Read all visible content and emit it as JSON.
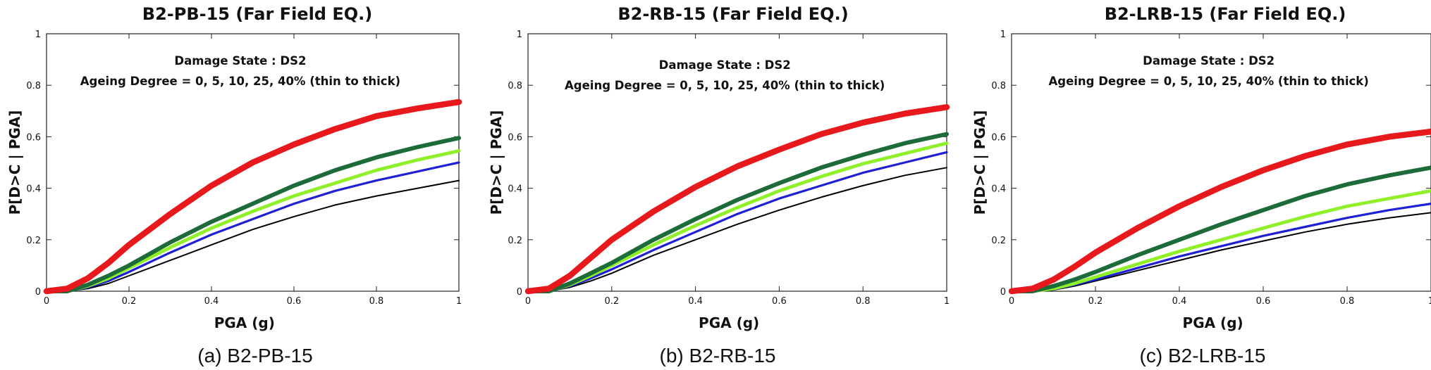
{
  "chart_data": [
    {
      "type": "line",
      "title": "B2-PB-15 (Far Field EQ.)",
      "caption": "(a) B2-PB-15",
      "xlabel": "PGA (g)",
      "ylabel": "P[D>C | PGA]",
      "xlim": [
        0,
        1
      ],
      "ylim": [
        0,
        1
      ],
      "xticks": [
        "0",
        "0.2",
        "0.4",
        "0.6",
        "0.8",
        "1"
      ],
      "yticks": [
        "0",
        "0.2",
        "0.4",
        "0.6",
        "0.8",
        "1"
      ],
      "annotations": [
        "Damage State : DS2",
        "Ageing Degree = 0, 5, 10, 25, 40% (thin to thick)"
      ],
      "x": [
        0,
        0.05,
        0.1,
        0.15,
        0.2,
        0.3,
        0.4,
        0.5,
        0.6,
        0.7,
        0.8,
        0.9,
        1.0
      ],
      "series": [
        {
          "name": "0%",
          "color": "#000000",
          "values": [
            0,
            0,
            0.01,
            0.03,
            0.06,
            0.12,
            0.18,
            0.24,
            0.29,
            0.335,
            0.37,
            0.4,
            0.43
          ]
        },
        {
          "name": "5%",
          "color": "#1f1fd6",
          "values": [
            0,
            0,
            0.015,
            0.04,
            0.075,
            0.15,
            0.22,
            0.28,
            0.34,
            0.39,
            0.43,
            0.465,
            0.5
          ]
        },
        {
          "name": "10%",
          "color": "#8ff02a",
          "values": [
            0,
            0,
            0.02,
            0.05,
            0.09,
            0.17,
            0.245,
            0.31,
            0.37,
            0.42,
            0.47,
            0.51,
            0.545
          ]
        },
        {
          "name": "25%",
          "color": "#1e6b3a",
          "values": [
            0,
            0,
            0.025,
            0.06,
            0.1,
            0.19,
            0.27,
            0.34,
            0.41,
            0.47,
            0.52,
            0.56,
            0.595
          ]
        },
        {
          "name": "40%",
          "color": "#e8191c",
          "values": [
            0,
            0.01,
            0.05,
            0.11,
            0.18,
            0.3,
            0.41,
            0.5,
            0.57,
            0.63,
            0.68,
            0.71,
            0.735
          ]
        }
      ]
    },
    {
      "type": "line",
      "title": "B2-RB-15 (Far Field EQ.)",
      "caption": "(b) B2-RB-15",
      "xlabel": "PGA (g)",
      "ylabel": "P[D>C | PGA]",
      "xlim": [
        0,
        1
      ],
      "ylim": [
        0,
        1
      ],
      "xticks": [
        "0",
        "0.2",
        "0.4",
        "0.6",
        "0.8",
        "1"
      ],
      "yticks": [
        "0",
        "0.2",
        "0.4",
        "0.6",
        "0.8",
        "1"
      ],
      "annotations": [
        "Damage State : DS2",
        "Ageing Degree = 0, 5, 10, 25, 40% (thin to thick)"
      ],
      "x": [
        0,
        0.05,
        0.1,
        0.15,
        0.2,
        0.3,
        0.4,
        0.5,
        0.6,
        0.7,
        0.8,
        0.9,
        1.0
      ],
      "series": [
        {
          "name": "0%",
          "color": "#000000",
          "values": [
            0,
            0,
            0.015,
            0.04,
            0.07,
            0.14,
            0.2,
            0.26,
            0.315,
            0.365,
            0.41,
            0.45,
            0.48
          ]
        },
        {
          "name": "5%",
          "color": "#1f1fd6",
          "values": [
            0,
            0,
            0.02,
            0.05,
            0.085,
            0.16,
            0.23,
            0.3,
            0.36,
            0.41,
            0.46,
            0.5,
            0.54
          ]
        },
        {
          "name": "10%",
          "color": "#8ff02a",
          "values": [
            0,
            0,
            0.025,
            0.06,
            0.1,
            0.18,
            0.255,
            0.325,
            0.39,
            0.445,
            0.495,
            0.535,
            0.575
          ]
        },
        {
          "name": "25%",
          "color": "#1e6b3a",
          "values": [
            0,
            0,
            0.03,
            0.07,
            0.11,
            0.2,
            0.28,
            0.355,
            0.42,
            0.48,
            0.53,
            0.575,
            0.61
          ]
        },
        {
          "name": "40%",
          "color": "#e8191c",
          "values": [
            0,
            0.01,
            0.06,
            0.13,
            0.2,
            0.31,
            0.405,
            0.485,
            0.55,
            0.61,
            0.655,
            0.69,
            0.715
          ]
        }
      ]
    },
    {
      "type": "line",
      "title": "B2-LRB-15 (Far Field EQ.)",
      "caption": "(c) B2-LRB-15",
      "xlabel": "PGA (g)",
      "ylabel": "P[D>C | PGA]",
      "xlim": [
        0,
        1
      ],
      "ylim": [
        0,
        1
      ],
      "xticks": [
        "0",
        "0.2",
        "0.4",
        "0.6",
        "0.8",
        "1"
      ],
      "yticks": [
        "0",
        "0.2",
        "0.4",
        "0.6",
        "0.8",
        "1"
      ],
      "annotations": [
        "Damage State : DS2",
        "Ageing Degree = 0, 5, 10, 25, 40% (thin to thick)"
      ],
      "x": [
        0,
        0.05,
        0.1,
        0.15,
        0.2,
        0.3,
        0.4,
        0.5,
        0.6,
        0.7,
        0.8,
        0.9,
        1.0
      ],
      "series": [
        {
          "name": "0%",
          "color": "#000000",
          "values": [
            0,
            0,
            0.005,
            0.02,
            0.04,
            0.08,
            0.12,
            0.16,
            0.195,
            0.23,
            0.26,
            0.285,
            0.305
          ]
        },
        {
          "name": "5%",
          "color": "#1f1fd6",
          "values": [
            0,
            0,
            0.008,
            0.025,
            0.045,
            0.09,
            0.135,
            0.175,
            0.215,
            0.25,
            0.285,
            0.315,
            0.34
          ]
        },
        {
          "name": "10%",
          "color": "#8ff02a",
          "values": [
            0,
            0,
            0.01,
            0.03,
            0.055,
            0.105,
            0.155,
            0.2,
            0.245,
            0.29,
            0.33,
            0.36,
            0.39
          ]
        },
        {
          "name": "25%",
          "color": "#1e6b3a",
          "values": [
            0,
            0,
            0.02,
            0.045,
            0.075,
            0.14,
            0.2,
            0.26,
            0.315,
            0.37,
            0.415,
            0.45,
            0.48
          ]
        },
        {
          "name": "40%",
          "color": "#e8191c",
          "values": [
            0,
            0.01,
            0.045,
            0.095,
            0.15,
            0.245,
            0.33,
            0.405,
            0.47,
            0.525,
            0.57,
            0.6,
            0.62
          ]
        }
      ]
    }
  ]
}
